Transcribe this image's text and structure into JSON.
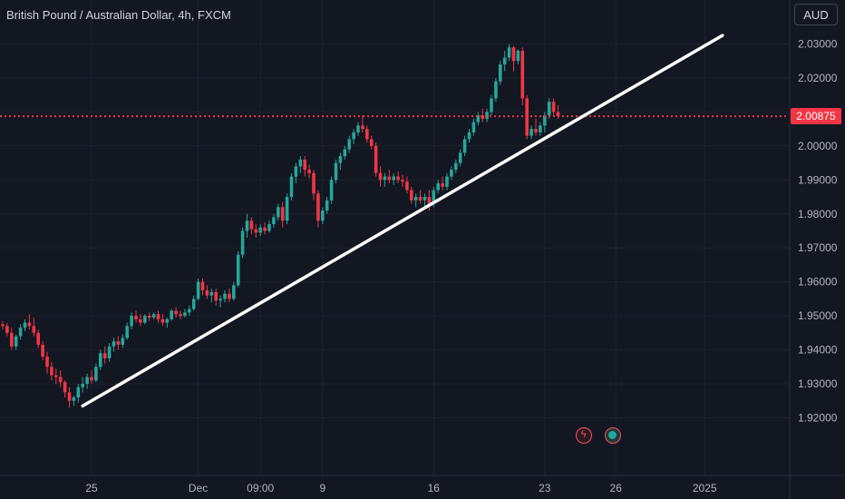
{
  "header": {
    "title": "British Pound / Australian Dollar, 4h, FXCM"
  },
  "currency_badge": "AUD",
  "current_price_label": "2.00875",
  "events": [
    {
      "icon": "flash-icon"
    },
    {
      "icon": "globe-icon"
    }
  ],
  "colors": {
    "up": "#26a69a",
    "down": "#f23645",
    "trendline": "#ffffff",
    "price_line": "#f23645"
  },
  "chart_data": {
    "type": "candlestick",
    "title": "British Pound / Australian Dollar, 4h, FXCM",
    "ylim": [
      1.915,
      2.035
    ],
    "yticks": [
      1.92,
      1.93,
      1.94,
      1.95,
      1.96,
      1.97,
      1.98,
      1.99,
      2.0,
      2.01,
      2.02,
      2.03
    ],
    "ytick_labels": [
      "1.92000",
      "1.93000",
      "1.94000",
      "1.95000",
      "1.96000",
      "1.97000",
      "1.98000",
      "1.99000",
      "2.00000",
      "2.01000",
      "2.02000",
      "2.03000"
    ],
    "xticks": [
      {
        "label": "25",
        "index": 20
      },
      {
        "label": "Dec",
        "index": 44
      },
      {
        "label": "09:00",
        "index": 58
      },
      {
        "label": "9",
        "index": 72
      },
      {
        "label": "16",
        "index": 97
      },
      {
        "label": "23",
        "index": 122
      },
      {
        "label": "26",
        "index": 138
      },
      {
        "label": "2025",
        "index": 158
      }
    ],
    "current_price": 2.00875,
    "grid": true,
    "trendline": {
      "from": {
        "index": 18,
        "price": 1.9235
      },
      "to": {
        "index": 162,
        "price": 2.0325
      }
    },
    "candles": [
      [
        1.9475,
        1.9485,
        1.946,
        1.947
      ],
      [
        1.947,
        1.948,
        1.944,
        1.945
      ],
      [
        1.945,
        1.9465,
        1.94,
        1.941
      ],
      [
        1.941,
        1.9445,
        1.94,
        1.944
      ],
      [
        1.944,
        1.9475,
        1.943,
        1.9465
      ],
      [
        1.9465,
        1.949,
        1.9455,
        1.948
      ],
      [
        1.948,
        1.9505,
        1.946,
        1.947
      ],
      [
        1.947,
        1.9495,
        1.944,
        1.945
      ],
      [
        1.945,
        1.946,
        1.9405,
        1.9415
      ],
      [
        1.9415,
        1.9425,
        1.937,
        1.938
      ],
      [
        1.938,
        1.9395,
        1.933,
        1.935
      ],
      [
        1.935,
        1.9365,
        1.931,
        1.9325
      ],
      [
        1.9325,
        1.9345,
        1.93,
        1.932
      ],
      [
        1.932,
        1.934,
        1.929,
        1.9305
      ],
      [
        1.9305,
        1.931,
        1.926,
        1.9275
      ],
      [
        1.9275,
        1.929,
        1.923,
        1.925
      ],
      [
        1.925,
        1.9265,
        1.9235,
        1.926
      ],
      [
        1.926,
        1.93,
        1.9245,
        1.929
      ],
      [
        1.929,
        1.932,
        1.9275,
        1.93
      ],
      [
        1.93,
        1.933,
        1.9285,
        1.932
      ],
      [
        1.932,
        1.934,
        1.93,
        1.931
      ],
      [
        1.931,
        1.936,
        1.9305,
        1.935
      ],
      [
        1.935,
        1.94,
        1.934,
        1.939
      ],
      [
        1.939,
        1.941,
        1.936,
        1.9375
      ],
      [
        1.9375,
        1.942,
        1.9365,
        1.941
      ],
      [
        1.941,
        1.9435,
        1.9395,
        1.9425
      ],
      [
        1.9425,
        1.944,
        1.94,
        1.9415
      ],
      [
        1.9415,
        1.9445,
        1.9405,
        1.9435
      ],
      [
        1.9435,
        1.948,
        1.943,
        1.947
      ],
      [
        1.947,
        1.951,
        1.946,
        1.95
      ],
      [
        1.95,
        1.9515,
        1.948,
        1.949
      ],
      [
        1.949,
        1.9505,
        1.947,
        1.948
      ],
      [
        1.948,
        1.9505,
        1.9475,
        1.95
      ],
      [
        1.95,
        1.951,
        1.9485,
        1.9495
      ],
      [
        1.9495,
        1.951,
        1.949,
        1.9505
      ],
      [
        1.9505,
        1.9515,
        1.948,
        1.949
      ],
      [
        1.949,
        1.9505,
        1.947,
        1.948
      ],
      [
        1.948,
        1.9495,
        1.9465,
        1.949
      ],
      [
        1.949,
        1.952,
        1.9485,
        1.9515
      ],
      [
        1.9515,
        1.9525,
        1.9495,
        1.9505
      ],
      [
        1.9505,
        1.9515,
        1.949,
        1.95
      ],
      [
        1.95,
        1.952,
        1.9495,
        1.951
      ],
      [
        1.951,
        1.953,
        1.95,
        1.952
      ],
      [
        1.952,
        1.956,
        1.9515,
        1.955
      ],
      [
        1.955,
        1.961,
        1.9545,
        1.96
      ],
      [
        1.96,
        1.961,
        1.956,
        1.9575
      ],
      [
        1.9575,
        1.959,
        1.955,
        1.956
      ],
      [
        1.956,
        1.958,
        1.954,
        1.957
      ],
      [
        1.957,
        1.958,
        1.953,
        1.9545
      ],
      [
        1.9545,
        1.956,
        1.9525,
        1.955
      ],
      [
        1.955,
        1.9575,
        1.954,
        1.9565
      ],
      [
        1.9565,
        1.958,
        1.954,
        1.955
      ],
      [
        1.955,
        1.96,
        1.9545,
        1.959
      ],
      [
        1.959,
        1.969,
        1.9585,
        1.968
      ],
      [
        1.968,
        1.976,
        1.967,
        1.975
      ],
      [
        1.975,
        1.98,
        1.973,
        1.978
      ],
      [
        1.978,
        1.979,
        1.974,
        1.9755
      ],
      [
        1.9755,
        1.977,
        1.973,
        1.9745
      ],
      [
        1.9745,
        1.977,
        1.9735,
        1.976
      ],
      [
        1.976,
        1.9775,
        1.974,
        1.975
      ],
      [
        1.975,
        1.978,
        1.9745,
        1.977
      ],
      [
        1.977,
        1.98,
        1.976,
        1.979
      ],
      [
        1.979,
        1.983,
        1.978,
        1.982
      ],
      [
        1.982,
        1.9835,
        1.976,
        1.978
      ],
      [
        1.978,
        1.986,
        1.977,
        1.985
      ],
      [
        1.985,
        1.992,
        1.984,
        1.991
      ],
      [
        1.991,
        1.995,
        1.989,
        1.994
      ],
      [
        1.994,
        1.997,
        1.992,
        1.996
      ],
      [
        1.996,
        1.997,
        1.991,
        1.993
      ],
      [
        1.993,
        1.9945,
        1.9905,
        1.992
      ],
      [
        1.992,
        1.993,
        1.984,
        1.986
      ],
      [
        1.986,
        1.987,
        1.976,
        1.978
      ],
      [
        1.978,
        1.982,
        1.977,
        1.981
      ],
      [
        1.981,
        1.985,
        1.98,
        1.984
      ],
      [
        1.984,
        1.991,
        1.983,
        1.99
      ],
      [
        1.99,
        1.996,
        1.989,
        1.995
      ],
      [
        1.995,
        1.998,
        1.993,
        1.997
      ],
      [
        1.997,
        2.0,
        1.996,
        1.999
      ],
      [
        1.999,
        2.003,
        1.998,
        2.002
      ],
      [
        2.002,
        2.005,
        2.0005,
        2.004
      ],
      [
        2.004,
        2.007,
        2.003,
        2.006
      ],
      [
        2.006,
        2.009,
        2.004,
        2.005
      ],
      [
        2.005,
        2.006,
        2.001,
        2.002
      ],
      [
        2.002,
        2.003,
        1.999,
        2.0
      ],
      [
        2.0,
        2.001,
        1.991,
        1.992
      ],
      [
        1.992,
        1.994,
        1.988,
        1.99
      ],
      [
        1.99,
        1.992,
        1.988,
        1.991
      ],
      [
        1.991,
        1.993,
        1.989,
        1.99
      ],
      [
        1.99,
        1.992,
        1.9885,
        1.991
      ],
      [
        1.991,
        1.9925,
        1.989,
        1.99
      ],
      [
        1.99,
        1.9915,
        1.988,
        1.9895
      ],
      [
        1.9895,
        1.991,
        1.986,
        1.987
      ],
      [
        1.987,
        1.988,
        1.983,
        1.984
      ],
      [
        1.984,
        1.986,
        1.982,
        1.985
      ],
      [
        1.985,
        1.987,
        1.983,
        1.984
      ],
      [
        1.984,
        1.986,
        1.982,
        1.985
      ],
      [
        1.985,
        1.987,
        1.981,
        1.983
      ],
      [
        1.983,
        1.988,
        1.982,
        1.987
      ],
      [
        1.987,
        1.99,
        1.986,
        1.989
      ],
      [
        1.989,
        1.991,
        1.987,
        1.988
      ],
      [
        1.988,
        1.992,
        1.987,
        1.991
      ],
      [
        1.991,
        1.994,
        1.99,
        1.993
      ],
      [
        1.993,
        1.996,
        1.992,
        1.995
      ],
      [
        1.995,
        1.999,
        1.994,
        1.998
      ],
      [
        1.998,
        2.003,
        1.997,
        2.002
      ],
      [
        2.002,
        2.005,
        2.001,
        2.004
      ],
      [
        2.004,
        2.008,
        2.003,
        2.007
      ],
      [
        2.007,
        2.01,
        2.006,
        2.009
      ],
      [
        2.009,
        2.011,
        2.007,
        2.008
      ],
      [
        2.008,
        2.011,
        2.007,
        2.01
      ],
      [
        2.01,
        2.015,
        2.009,
        2.014
      ],
      [
        2.014,
        2.02,
        2.013,
        2.019
      ],
      [
        2.019,
        2.025,
        2.018,
        2.024
      ],
      [
        2.024,
        2.028,
        2.022,
        2.026
      ],
      [
        2.026,
        2.03,
        2.025,
        2.029
      ],
      [
        2.029,
        2.0295,
        2.022,
        2.025
      ],
      [
        2.025,
        2.0285,
        2.024,
        2.028
      ],
      [
        2.028,
        2.029,
        2.012,
        2.014
      ],
      [
        2.014,
        2.015,
        2.002,
        2.003
      ],
      [
        2.003,
        2.006,
        2.002,
        2.005
      ],
      [
        2.005,
        2.008,
        2.003,
        2.004
      ],
      [
        2.004,
        2.007,
        2.003,
        2.006
      ],
      [
        2.006,
        2.01,
        2.004,
        2.009
      ],
      [
        2.009,
        2.014,
        2.008,
        2.013
      ],
      [
        2.013,
        2.014,
        2.009,
        2.01
      ],
      [
        2.01,
        2.012,
        2.008,
        2.0088
      ]
    ]
  }
}
